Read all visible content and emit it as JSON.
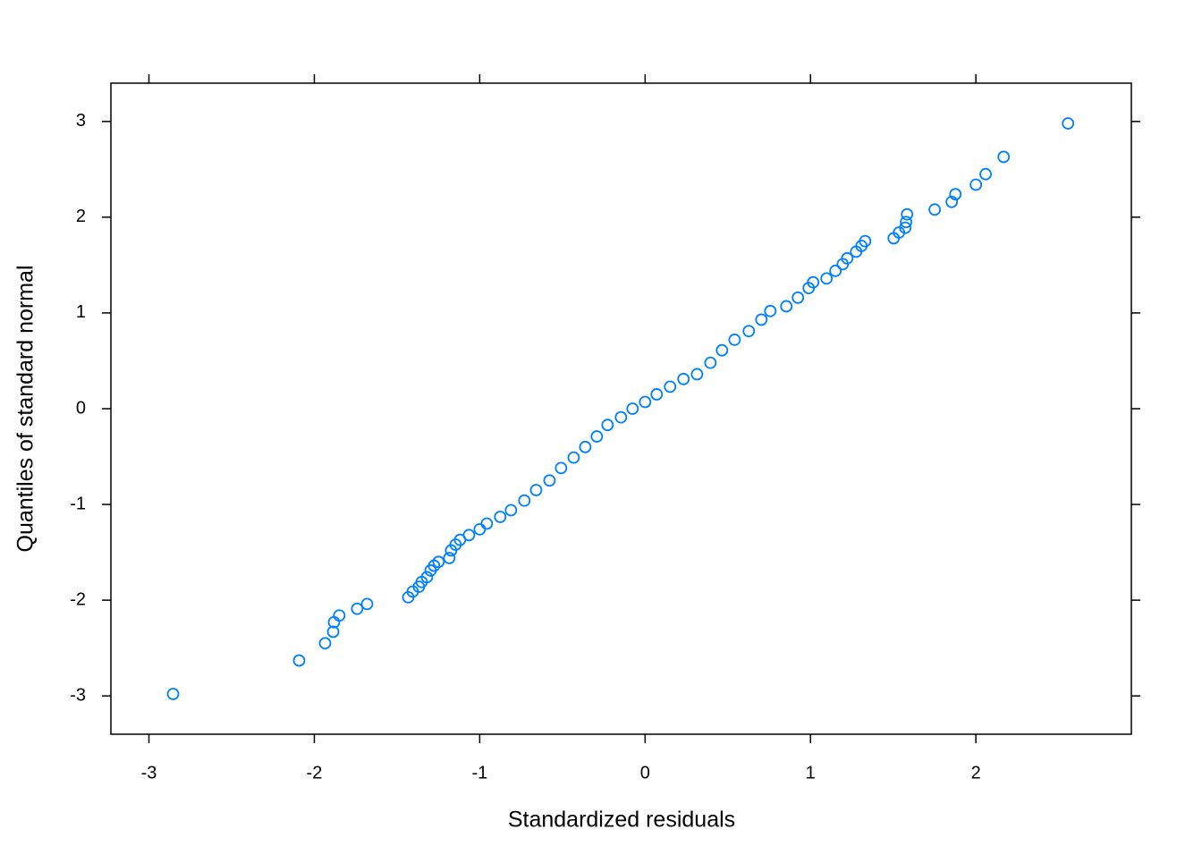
{
  "chart_data": {
    "type": "scatter",
    "x_label": "Standardized residuals",
    "y_label": "Quantiles of standard normal",
    "color": "#0080ff",
    "xlim": [
      -3.23,
      2.94
    ],
    "ylim": [
      -3.4,
      3.4
    ],
    "xticks": [
      -3,
      -2,
      -1,
      0,
      1,
      2
    ],
    "yticks": [
      -3,
      -2,
      -1,
      0,
      1,
      2,
      3
    ],
    "x": [
      -2.854,
      -2.092,
      -1.935,
      -1.886,
      -1.881,
      -1.849,
      -1.741,
      -1.681,
      -1.432,
      -1.405,
      -1.368,
      -1.351,
      -1.319,
      -1.297,
      -1.276,
      -1.249,
      -1.184,
      -1.173,
      -1.146,
      -1.119,
      -1.065,
      -1.0,
      -0.957,
      -0.876,
      -0.811,
      -0.73,
      -0.659,
      -0.578,
      -0.508,
      -0.432,
      -0.362,
      -0.292,
      -0.227,
      -0.146,
      -0.076,
      0.0,
      0.07,
      0.151,
      0.232,
      0.314,
      0.395,
      0.465,
      0.541,
      0.627,
      0.703,
      0.757,
      0.854,
      0.924,
      0.989,
      1.016,
      1.097,
      1.151,
      1.195,
      1.222,
      1.276,
      1.308,
      1.33,
      1.503,
      1.535,
      1.573,
      1.578,
      1.584,
      1.751,
      1.854,
      1.876,
      2.0,
      2.059,
      2.168,
      2.557
    ],
    "values": [
      -2.98,
      -2.63,
      -2.45,
      -2.33,
      -2.23,
      -2.16,
      -2.09,
      -2.04,
      -1.97,
      -1.91,
      -1.86,
      -1.81,
      -1.76,
      -1.69,
      -1.64,
      -1.6,
      -1.56,
      -1.48,
      -1.42,
      -1.37,
      -1.32,
      -1.26,
      -1.2,
      -1.13,
      -1.06,
      -0.96,
      -0.85,
      -0.75,
      -0.62,
      -0.51,
      -0.4,
      -0.29,
      -0.17,
      -0.09,
      0.0,
      0.07,
      0.15,
      0.23,
      0.31,
      0.36,
      0.48,
      0.61,
      0.72,
      0.81,
      0.93,
      1.02,
      1.07,
      1.16,
      1.26,
      1.32,
      1.36,
      1.44,
      1.51,
      1.57,
      1.64,
      1.7,
      1.75,
      1.78,
      1.84,
      1.89,
      1.95,
      2.03,
      2.08,
      2.16,
      2.24,
      2.34,
      2.45,
      2.63,
      2.98
    ]
  }
}
